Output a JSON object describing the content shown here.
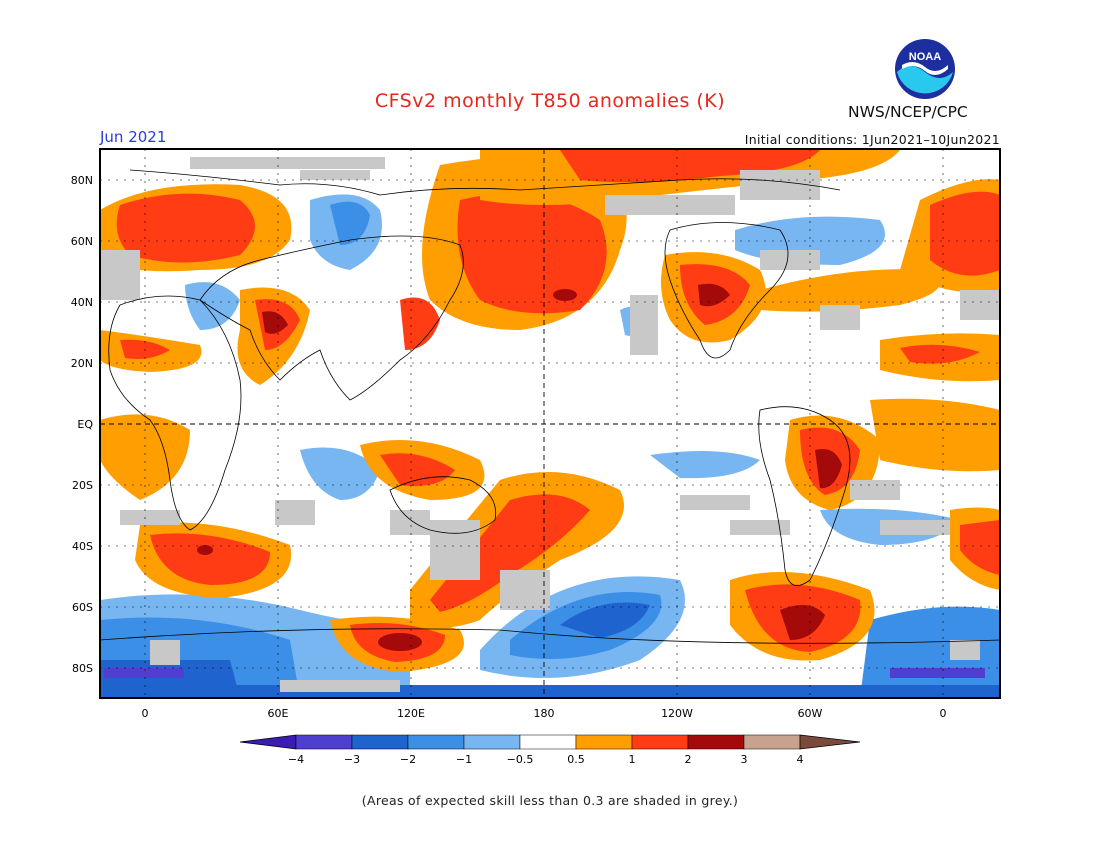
{
  "header": {
    "title": "CFSv2 monthly T850 anomalies (K)",
    "period": "Jun 2021",
    "initial_conditions": "Initial conditions: 1Jun2021–10Jun2021",
    "agency": "NWS/NCEP/CPC",
    "logo_text": "NOAA"
  },
  "map": {
    "lat_labels": [
      "80N",
      "60N",
      "40N",
      "20N",
      "EQ",
      "20S",
      "40S",
      "60S",
      "80S"
    ],
    "lon_labels": [
      "0",
      "60E",
      "120E",
      "180",
      "120W",
      "60W",
      "0"
    ],
    "colors": {
      "border": "#000000",
      "grid": "#000000",
      "grey_low_skill": "#c8c8c8"
    }
  },
  "colorbar": {
    "tick_labels": [
      "−4",
      "−3",
      "−2",
      "−1",
      "−0.5",
      "0.5",
      "1",
      "2",
      "3",
      "4"
    ],
    "colors": [
      "#3a1bb4",
      "#4f3fd0",
      "#1f63cf",
      "#3c8fe6",
      "#78b6f2",
      "#ffffff",
      "#ff9e00",
      "#ff3c14",
      "#a50a0a",
      "#c7a38f",
      "#7a4b3c"
    ]
  },
  "footnote": "(Areas of expected skill less than 0.3 are shaded in grey.)"
}
